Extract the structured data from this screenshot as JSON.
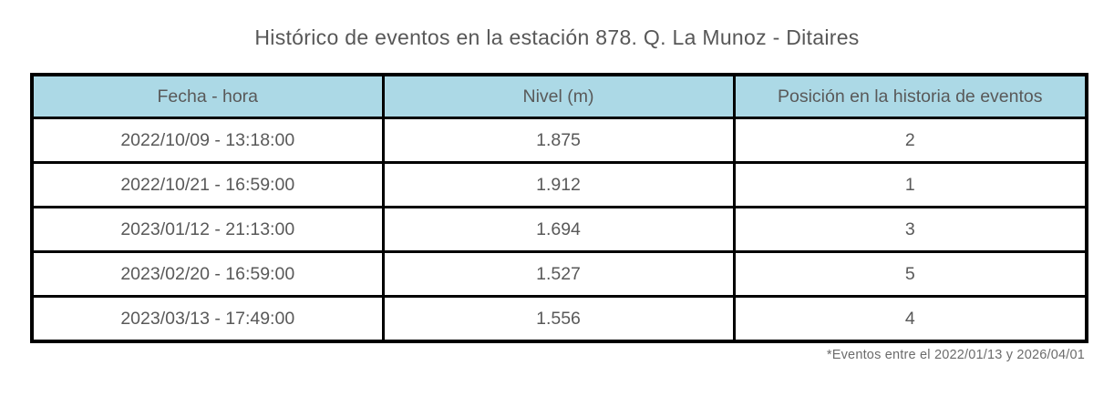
{
  "title": "Histórico de eventos en la estación 878. Q. La Munoz - Ditaires",
  "chart_data": {
    "type": "table",
    "title": "Histórico de eventos en la estación 878. Q. La Munoz - Ditaires",
    "columns": [
      "Fecha - hora",
      "Nivel (m)",
      "Posición en la historia de eventos"
    ],
    "rows": [
      [
        "2022/10/09 - 13:18:00",
        "1.875",
        "2"
      ],
      [
        "2022/10/21 - 16:59:00",
        "1.912",
        "1"
      ],
      [
        "2023/01/12 - 21:13:00",
        "1.694",
        "3"
      ],
      [
        "2023/02/20 - 16:59:00",
        "1.527",
        "5"
      ],
      [
        "2023/03/13 - 17:49:00",
        "1.556",
        "4"
      ]
    ],
    "footnote": "*Eventos entre el 2022/01/13 y 2026/04/01",
    "layout": {
      "header_bg": "#acd9e6",
      "border_color": "#000000",
      "text_color": "#595959",
      "grid": "on"
    }
  }
}
